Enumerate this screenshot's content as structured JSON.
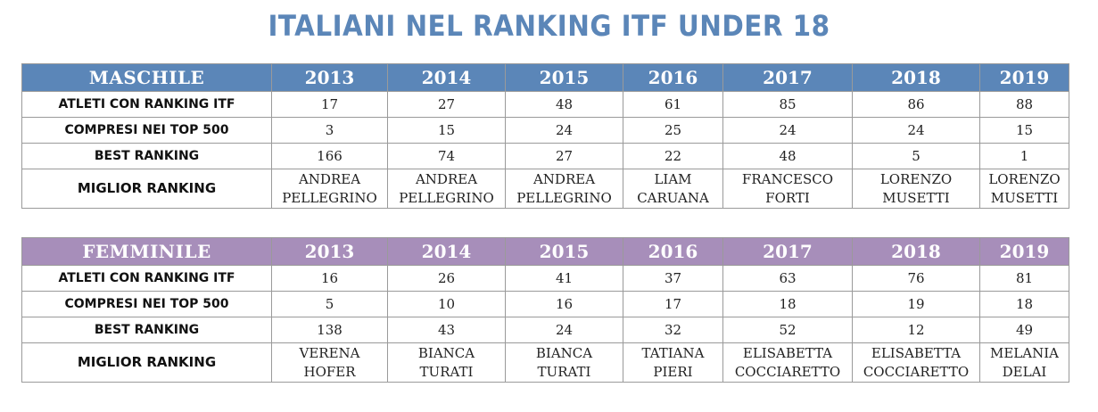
{
  "title": "ITALIANI NEL RANKING ITF UNDER 18",
  "colors": {
    "title": "#5b86b8",
    "maschile_header": "#5b86b8",
    "femminile_header": "#a78eba"
  },
  "chart_data": [
    {
      "type": "table",
      "columns": [
        "MASCHILE",
        "2013",
        "2014",
        "2015",
        "2016",
        "2017",
        "2018",
        "2019"
      ],
      "rows": [
        {
          "label": "ATLETI CON RANKING ITF",
          "values": [
            "17",
            "27",
            "48",
            "61",
            "85",
            "86",
            "88"
          ]
        },
        {
          "label": "COMPRESI NEI TOP 500",
          "values": [
            "3",
            "15",
            "24",
            "25",
            "24",
            "24",
            "15"
          ]
        },
        {
          "label": "BEST RANKING",
          "values": [
            "166",
            "74",
            "27",
            "22",
            "48",
            "5",
            "1"
          ]
        },
        {
          "label": "MIGLIOR RANKING",
          "values": [
            [
              "ANDREA",
              "PELLEGRINO"
            ],
            [
              "ANDREA",
              "PELLEGRINO"
            ],
            [
              "ANDREA",
              "PELLEGRINO"
            ],
            [
              "LIAM",
              "CARUANA"
            ],
            [
              "FRANCESCO",
              "FORTI"
            ],
            [
              "LORENZO",
              "MUSETTI"
            ],
            [
              "LORENZO",
              "MUSETTI"
            ]
          ]
        }
      ]
    },
    {
      "type": "table",
      "columns": [
        "FEMMINILE",
        "2013",
        "2014",
        "2015",
        "2016",
        "2017",
        "2018",
        "2019"
      ],
      "rows": [
        {
          "label": "ATLETI CON RANKING ITF",
          "values": [
            "16",
            "26",
            "41",
            "37",
            "63",
            "76",
            "81"
          ]
        },
        {
          "label": "COMPRESI NEI TOP 500",
          "values": [
            "5",
            "10",
            "16",
            "17",
            "18",
            "19",
            "18"
          ]
        },
        {
          "label": "BEST RANKING",
          "values": [
            "138",
            "43",
            "24",
            "32",
            "52",
            "12",
            "49"
          ]
        },
        {
          "label": "MIGLIOR RANKING",
          "values": [
            [
              "VERENA",
              "HOFER"
            ],
            [
              "BIANCA",
              "TURATI"
            ],
            [
              "BIANCA",
              "TURATI"
            ],
            [
              "TATIANA",
              "PIERI"
            ],
            [
              "ELISABETTA",
              "COCCIARETTO"
            ],
            [
              "ELISABETTA",
              "COCCIARETTO"
            ],
            [
              "MELANIA",
              "DELAI"
            ]
          ]
        }
      ]
    }
  ]
}
